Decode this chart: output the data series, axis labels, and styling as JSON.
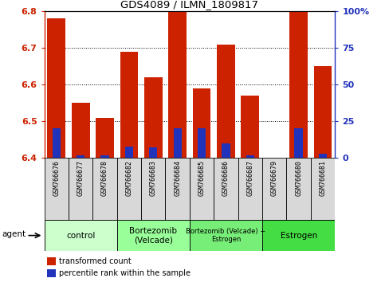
{
  "title": "GDS4089 / ILMN_1809817",
  "samples": [
    "GSM766676",
    "GSM766677",
    "GSM766678",
    "GSM766682",
    "GSM766683",
    "GSM766684",
    "GSM766685",
    "GSM766686",
    "GSM766687",
    "GSM766679",
    "GSM766680",
    "GSM766681"
  ],
  "transformed_counts": [
    6.78,
    6.55,
    6.51,
    6.69,
    6.62,
    6.8,
    6.59,
    6.71,
    6.57,
    6.4,
    6.8,
    6.65
  ],
  "percentile_ranks": [
    20,
    2,
    2,
    8,
    7,
    20,
    20,
    10,
    2,
    0,
    20,
    3
  ],
  "ylim_left": [
    6.4,
    6.8
  ],
  "ylim_right": [
    0,
    100
  ],
  "yticks_left": [
    6.4,
    6.5,
    6.6,
    6.7,
    6.8
  ],
  "yticks_right": [
    0,
    25,
    50,
    75,
    100
  ],
  "ytick_labels_right": [
    "0",
    "25",
    "50",
    "75",
    "100%"
  ],
  "bar_color_red": "#CC2200",
  "bar_color_blue": "#2233BB",
  "groups": [
    {
      "label": "control",
      "indices": [
        0,
        1,
        2
      ],
      "color": "#CCFFCC"
    },
    {
      "label": "Bortezomib\n(Velcade)",
      "indices": [
        3,
        4,
        5
      ],
      "color": "#99FF99"
    },
    {
      "label": "Bortezomib (Velcade) +\nEstrogen",
      "indices": [
        6,
        7,
        8
      ],
      "color": "#77EE77"
    },
    {
      "label": "Estrogen",
      "indices": [
        9,
        10,
        11
      ],
      "color": "#44DD44"
    }
  ],
  "agent_label": "agent",
  "legend_red": "transformed count",
  "legend_blue": "percentile rank within the sample",
  "grid_color": "black",
  "tick_color_left": "#CC2200",
  "tick_color_right": "#2233BB",
  "sample_box_color": "#D8D8D8",
  "fig_bg": "#FFFFFF"
}
